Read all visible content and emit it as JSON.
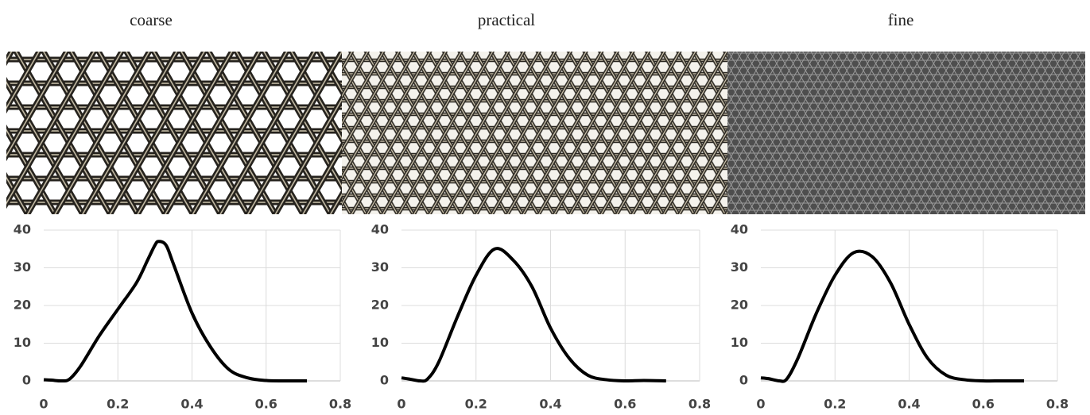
{
  "chart_data": [
    {
      "type": "line",
      "title": "coarse",
      "color": "#000000",
      "grid": true,
      "x": [
        0,
        0.02,
        0.05,
        0.07,
        0.1,
        0.15,
        0.2,
        0.25,
        0.28,
        0.3,
        0.31,
        0.33,
        0.35,
        0.4,
        0.45,
        0.5,
        0.55,
        0.6,
        0.65,
        0.71
      ],
      "values": [
        0.3,
        0.2,
        0,
        0.5,
        4,
        12,
        19,
        26,
        32,
        36,
        37,
        36,
        31,
        18,
        9,
        3,
        0.8,
        0.1,
        0,
        0
      ],
      "xlim": [
        0,
        0.8
      ],
      "xticks": [
        0,
        0.2,
        0.4,
        0.6,
        0.8
      ],
      "ylim": [
        0,
        40
      ],
      "yticks": [
        0,
        10,
        20,
        30,
        40
      ]
    },
    {
      "type": "line",
      "title": "practical",
      "color": "#000000",
      "grid": true,
      "x": [
        0,
        0.02,
        0.05,
        0.07,
        0.1,
        0.15,
        0.2,
        0.25,
        0.3,
        0.35,
        0.4,
        0.45,
        0.5,
        0.55,
        0.6,
        0.65,
        0.71
      ],
      "values": [
        0.8,
        0.5,
        0,
        0.5,
        5,
        17,
        28,
        35,
        32,
        25,
        14,
        6,
        1.5,
        0.3,
        0,
        0.1,
        0
      ],
      "xlim": [
        0,
        0.8
      ],
      "xticks": [
        0,
        0.2,
        0.4,
        0.6,
        0.8
      ],
      "ylim": [
        0,
        40
      ],
      "yticks": [
        0,
        10,
        20,
        30,
        40
      ]
    },
    {
      "type": "line",
      "title": "fine",
      "color": "#000000",
      "grid": true,
      "x": [
        0,
        0.02,
        0.05,
        0.07,
        0.1,
        0.15,
        0.2,
        0.25,
        0.3,
        0.35,
        0.4,
        0.45,
        0.5,
        0.55,
        0.6,
        0.65,
        0.71
      ],
      "values": [
        0.8,
        0.6,
        0,
        0.5,
        6,
        18,
        28,
        34,
        33,
        26,
        15,
        6,
        1.5,
        0.3,
        0,
        0,
        0
      ],
      "xlim": [
        0,
        0.8
      ],
      "xticks": [
        0,
        0.2,
        0.4,
        0.6,
        0.8
      ],
      "ylim": [
        0,
        40
      ],
      "yticks": [
        0,
        10,
        20,
        30,
        40
      ]
    }
  ]
}
